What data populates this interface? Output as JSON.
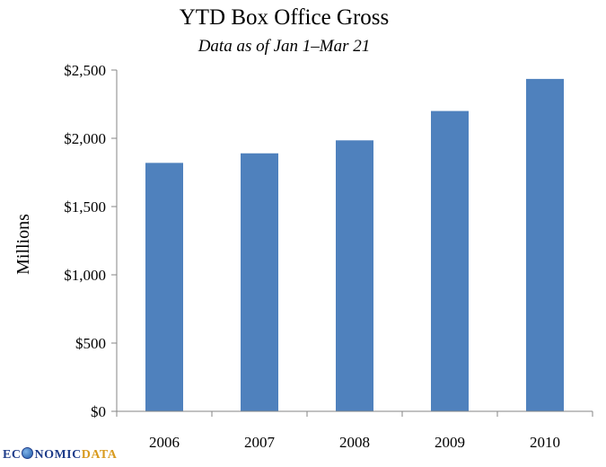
{
  "chart_data": {
    "type": "bar",
    "title": "YTD Box Office Gross",
    "subtitle": "Data as of Jan 1–Mar 21",
    "xlabel": "",
    "ylabel": "Millions",
    "categories": [
      "2006",
      "2007",
      "2008",
      "2009",
      "2010"
    ],
    "values": [
      1820,
      1890,
      1985,
      2200,
      2435
    ],
    "ylim": [
      0,
      2500
    ],
    "yticks": [
      0,
      500,
      1000,
      1500,
      2000,
      2500
    ],
    "ytick_labels": [
      "$0",
      "$500",
      "$1,000",
      "$1,500",
      "$2,000",
      "$2,500"
    ],
    "grid": false,
    "legend": "none",
    "bar_color": "#4f81bd"
  },
  "logo": {
    "part1": "EC",
    "part2": "NOMIC",
    "part3": "DATA"
  }
}
